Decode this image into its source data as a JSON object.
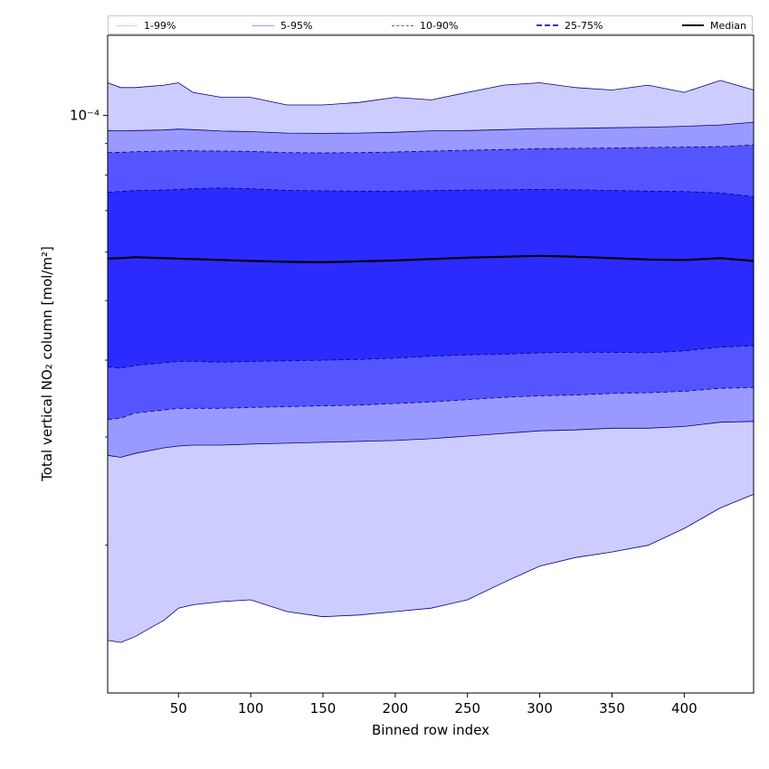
{
  "chart_data": {
    "type": "area",
    "title": "",
    "xlabel": "Binned row index",
    "ylabel": "Total vertical NO₂ column [mol/m²]",
    "y_scale": "log",
    "xlim": [
      1,
      448
    ],
    "ylim": [
      1.15e-05,
      0.000135
    ],
    "x_ticks": [
      50,
      100,
      150,
      200,
      250,
      300,
      350,
      400
    ],
    "y_major_tick": {
      "value": 0.0001,
      "label": "10⁻⁴"
    },
    "y_minor_ticks": [
      2e-05,
      3e-05,
      4e-05,
      5e-05,
      6e-05,
      7e-05,
      8e-05,
      9e-05
    ],
    "grid": false,
    "legend_placement": "top",
    "x": [
      1,
      10,
      20,
      40,
      50,
      60,
      80,
      100,
      125,
      150,
      175,
      200,
      225,
      250,
      275,
      300,
      325,
      350,
      375,
      400,
      425,
      448
    ],
    "bands": [
      {
        "name": "1-99%",
        "color": "#ccccff",
        "line_style": "solid",
        "lower": [
          1.4e-05,
          1.39e-05,
          1.42e-05,
          1.51e-05,
          1.58e-05,
          1.6e-05,
          1.62e-05,
          1.63e-05,
          1.56e-05,
          1.53e-05,
          1.54e-05,
          1.56e-05,
          1.58e-05,
          1.63e-05,
          1.74e-05,
          1.85e-05,
          1.91e-05,
          1.95e-05,
          2e-05,
          2.13e-05,
          2.3e-05,
          2.42e-05
        ],
        "upper": [
          0.000113,
          0.000111,
          0.000111,
          0.000112,
          0.000113,
          0.000109,
          0.000107,
          0.000107,
          0.000104,
          0.000104,
          0.000105,
          0.000107,
          0.000106,
          0.000109,
          0.000112,
          0.000113,
          0.000111,
          0.00011,
          0.000112,
          0.000109,
          0.000114,
          0.00011
        ]
      },
      {
        "name": "5-95%",
        "color": "#9999ff",
        "line_style": "solid",
        "lower": [
          2.8e-05,
          2.78e-05,
          2.82e-05,
          2.88e-05,
          2.9e-05,
          2.91e-05,
          2.91e-05,
          2.92e-05,
          2.93e-05,
          2.94e-05,
          2.95e-05,
          2.96e-05,
          2.98e-05,
          3.01e-05,
          3.04e-05,
          3.07e-05,
          3.08e-05,
          3.1e-05,
          3.1e-05,
          3.12e-05,
          3.17e-05,
          3.18e-05
        ],
        "upper": [
          9.45e-05,
          9.44e-05,
          9.45e-05,
          9.47e-05,
          9.5e-05,
          9.48e-05,
          9.43e-05,
          9.41e-05,
          9.36e-05,
          9.35e-05,
          9.36e-05,
          9.39e-05,
          9.44e-05,
          9.45e-05,
          9.48e-05,
          9.52e-05,
          9.53e-05,
          9.55e-05,
          9.57e-05,
          9.6e-05,
          9.65e-05,
          9.75e-05
        ]
      },
      {
        "name": "10-90%",
        "color": "#5555ff",
        "line_style": "dashed",
        "lower": [
          3.2e-05,
          3.22e-05,
          3.28e-05,
          3.32e-05,
          3.34e-05,
          3.34e-05,
          3.34e-05,
          3.35e-05,
          3.36e-05,
          3.37e-05,
          3.38e-05,
          3.4e-05,
          3.42e-05,
          3.45e-05,
          3.48e-05,
          3.5e-05,
          3.51e-05,
          3.53e-05,
          3.54e-05,
          3.56e-05,
          3.6e-05,
          3.61e-05
        ],
        "upper": [
          8.7e-05,
          8.71e-05,
          8.73e-05,
          8.75e-05,
          8.77e-05,
          8.76e-05,
          8.75e-05,
          8.74e-05,
          8.7e-05,
          8.69e-05,
          8.7e-05,
          8.72e-05,
          8.75e-05,
          8.78e-05,
          8.8e-05,
          8.83e-05,
          8.84e-05,
          8.85e-05,
          8.87e-05,
          8.88e-05,
          8.9e-05,
          8.95e-05
        ]
      },
      {
        "name": "25-75%",
        "color": "#2b2bff",
        "line_style": "dashed",
        "lower": [
          3.9e-05,
          3.88e-05,
          3.92e-05,
          3.96e-05,
          3.98e-05,
          3.98e-05,
          3.97e-05,
          3.98e-05,
          3.99e-05,
          4e-05,
          4.01e-05,
          4.03e-05,
          4.06e-05,
          4.08e-05,
          4.09e-05,
          4.11e-05,
          4.12e-05,
          4.12e-05,
          4.11e-05,
          4.14e-05,
          4.2e-05,
          4.22e-05
        ],
        "upper": [
          7.5e-05,
          7.52e-05,
          7.55e-05,
          7.56e-05,
          7.58e-05,
          7.6e-05,
          7.62e-05,
          7.6e-05,
          7.55e-05,
          7.54e-05,
          7.53e-05,
          7.53e-05,
          7.55e-05,
          7.56e-05,
          7.57e-05,
          7.58e-05,
          7.57e-05,
          7.55e-05,
          7.53e-05,
          7.52e-05,
          7.48e-05,
          7.38e-05
        ]
      }
    ],
    "median": {
      "name": "Median",
      "color": "#000000",
      "values": [
        5.85e-05,
        5.86e-05,
        5.88e-05,
        5.86e-05,
        5.85e-05,
        5.84e-05,
        5.82e-05,
        5.8e-05,
        5.78e-05,
        5.77e-05,
        5.79e-05,
        5.81e-05,
        5.84e-05,
        5.87e-05,
        5.89e-05,
        5.91e-05,
        5.89e-05,
        5.86e-05,
        5.83e-05,
        5.82e-05,
        5.86e-05,
        5.8e-05
      ]
    },
    "legend": [
      {
        "label": "1-99%",
        "color": "#ccccff",
        "style": "solid"
      },
      {
        "label": "5-95%",
        "color": "#9999ff",
        "style": "solid"
      },
      {
        "label": "10-90%",
        "color": "#5555ff",
        "style": "dashed"
      },
      {
        "label": "25-75%",
        "color": "#2b2bff",
        "style": "dashed"
      },
      {
        "label": "Median",
        "color": "#000000",
        "style": "solid-thick"
      }
    ]
  }
}
